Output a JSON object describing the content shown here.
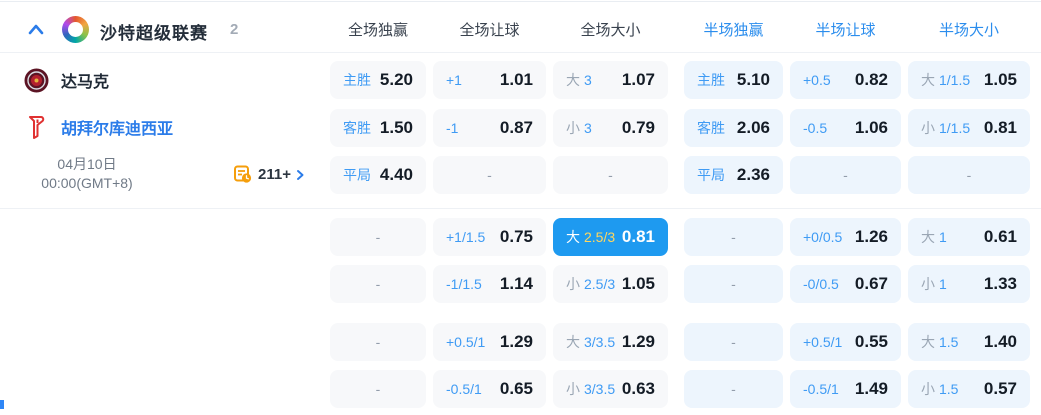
{
  "header": {
    "league": "沙特超级联赛",
    "count": "2",
    "columns": [
      {
        "label": "全场独赢",
        "group": "full"
      },
      {
        "label": "全场让球",
        "group": "full"
      },
      {
        "label": "全场大小",
        "group": "full"
      },
      {
        "label": "半场独赢",
        "group": "half"
      },
      {
        "label": "半场让球",
        "group": "half"
      },
      {
        "label": "半场大小",
        "group": "half"
      }
    ]
  },
  "match": {
    "home_team": "达马克",
    "away_team": "胡拜尔库迪西亚",
    "date": "04月10日",
    "time": "00:00(GMT+8)",
    "more_markets_count": "211+"
  },
  "colors": {
    "accent_blue": "#2b8ded",
    "label_blue": "#3f9bf4",
    "highlight_cell_bg": "#1e9af0",
    "highlight_line_gold": "#ffd65e",
    "full_cell_bg": "#f7f8fa",
    "half_cell_bg": "#edf5fd",
    "more_icon_orange": "#f59e0b"
  },
  "odds_rows": [
    {
      "cells": [
        {
          "label": "主胜",
          "value": "5.20"
        },
        {
          "label": "+1",
          "value": "1.01"
        },
        {
          "prefix": "大",
          "line": "3",
          "value": "1.07"
        },
        {
          "label": "主胜",
          "value": "5.10"
        },
        {
          "label": "+0.5",
          "value": "0.82"
        },
        {
          "prefix": "大",
          "line": "1/1.5",
          "value": "1.05"
        }
      ]
    },
    {
      "cells": [
        {
          "label": "客胜",
          "value": "1.50"
        },
        {
          "label": "-1",
          "value": "0.87"
        },
        {
          "prefix": "小",
          "line": "3",
          "value": "0.79"
        },
        {
          "label": "客胜",
          "value": "2.06"
        },
        {
          "label": "-0.5",
          "value": "1.06"
        },
        {
          "prefix": "小",
          "line": "1/1.5",
          "value": "0.81"
        }
      ]
    },
    {
      "cells": [
        {
          "label": "平局",
          "value": "4.40"
        },
        {
          "label": "-",
          "value": null
        },
        {
          "label": "-",
          "value": null
        },
        {
          "label": "平局",
          "value": "2.36"
        },
        {
          "label": "-",
          "value": null
        },
        {
          "label": "-",
          "value": null
        }
      ]
    },
    {
      "cells": [
        {
          "label": "-",
          "value": null
        },
        {
          "label": "+1/1.5",
          "value": "0.75"
        },
        {
          "prefix": "大",
          "line": "2.5/3",
          "value": "0.81",
          "highlight": true
        },
        {
          "label": "-",
          "value": null
        },
        {
          "label": "+0/0.5",
          "value": "1.26"
        },
        {
          "prefix": "大",
          "line": "1",
          "value": "0.61"
        }
      ]
    },
    {
      "cells": [
        {
          "label": "-",
          "value": null
        },
        {
          "label": "-1/1.5",
          "value": "1.14"
        },
        {
          "prefix": "小",
          "line": "2.5/3",
          "value": "1.05"
        },
        {
          "label": "-",
          "value": null
        },
        {
          "label": "-0/0.5",
          "value": "0.67"
        },
        {
          "prefix": "小",
          "line": "1",
          "value": "1.33"
        }
      ]
    },
    {
      "cells": [
        {
          "label": "-",
          "value": null
        },
        {
          "label": "+0.5/1",
          "value": "1.29"
        },
        {
          "prefix": "大",
          "line": "3/3.5",
          "value": "1.29"
        },
        {
          "label": "-",
          "value": null
        },
        {
          "label": "+0.5/1",
          "value": "0.55"
        },
        {
          "prefix": "大",
          "line": "1.5",
          "value": "1.40"
        }
      ]
    },
    {
      "cells": [
        {
          "label": "-",
          "value": null
        },
        {
          "label": "-0.5/1",
          "value": "0.65"
        },
        {
          "prefix": "小",
          "line": "3/3.5",
          "value": "0.63"
        },
        {
          "label": "-",
          "value": null
        },
        {
          "label": "-0.5/1",
          "value": "1.49"
        },
        {
          "prefix": "小",
          "line": "1.5",
          "value": "0.57"
        }
      ]
    }
  ]
}
